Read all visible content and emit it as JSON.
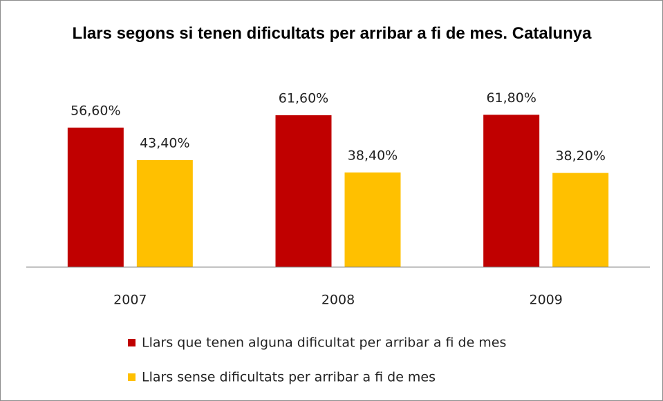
{
  "chart_data": {
    "type": "bar",
    "title": "Llars segons si tenen dificultats per arribar a fi de mes. Catalunya",
    "categories": [
      "2007",
      "2008",
      "2009"
    ],
    "series": [
      {
        "name": "Llars que tenen alguna dificultat per arribar a fi de mes",
        "color": "#c00000",
        "values": [
          56.6,
          61.6,
          61.8
        ],
        "value_labels": [
          "56,60%",
          "61,60%",
          "61,80%"
        ]
      },
      {
        "name": "Llars sense dificultats per arribar a fi de mes",
        "color": "#ffc000",
        "values": [
          43.4,
          38.4,
          38.2
        ],
        "value_labels": [
          "43,40%",
          "38,40%",
          "38,20%"
        ]
      }
    ],
    "ylim": [
      0,
      70
    ],
    "grid": false,
    "legend": "bottom"
  }
}
